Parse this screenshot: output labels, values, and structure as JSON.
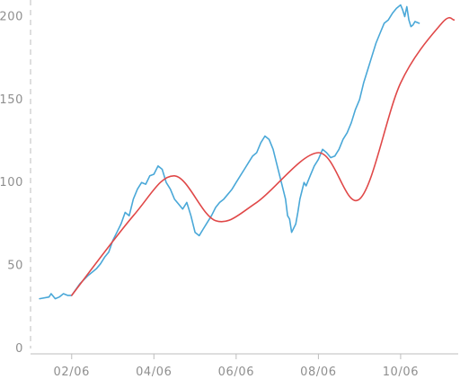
{
  "chart_data": {
    "type": "line",
    "title": "",
    "xlabel": "",
    "ylabel": "",
    "grid": false,
    "legend": "none",
    "xlim": [
      0.0,
      10.4
    ],
    "ylim": [
      0,
      210
    ],
    "x_ticks": [
      {
        "value": 1,
        "label": "02/06"
      },
      {
        "value": 3,
        "label": "04/06"
      },
      {
        "value": 5,
        "label": "06/06"
      },
      {
        "value": 7,
        "label": "08/06"
      },
      {
        "value": 9,
        "label": "10/06"
      }
    ],
    "y_ticks": [
      {
        "value": 0,
        "label": "0"
      },
      {
        "value": 50,
        "label": "50"
      },
      {
        "value": 100,
        "label": "100"
      },
      {
        "value": 150,
        "label": "150"
      },
      {
        "value": 200,
        "label": "200"
      }
    ],
    "series": [
      {
        "color": "#4aa8d8",
        "x": [
          0.22,
          0.45,
          0.5,
          0.6,
          0.7,
          0.8,
          0.9,
          1.0,
          1.2,
          1.4,
          1.5,
          1.6,
          1.7,
          1.8,
          1.9,
          2.0,
          2.1,
          2.2,
          2.3,
          2.4,
          2.5,
          2.6,
          2.7,
          2.8,
          2.9,
          3.0,
          3.1,
          3.2,
          3.3,
          3.4,
          3.5,
          3.6,
          3.7,
          3.8,
          3.9,
          4.0,
          4.1,
          4.2,
          4.3,
          4.4,
          4.5,
          4.6,
          4.7,
          4.8,
          4.9,
          5.0,
          5.1,
          5.2,
          5.3,
          5.4,
          5.5,
          5.6,
          5.7,
          5.8,
          5.9,
          6.0,
          6.1,
          6.2,
          6.25,
          6.3,
          6.35,
          6.45,
          6.5,
          6.55,
          6.6,
          6.65,
          6.7,
          6.8,
          6.9,
          7.0,
          7.1,
          7.2,
          7.3,
          7.4,
          7.5,
          7.6,
          7.7,
          7.8,
          7.9,
          8.0,
          8.1,
          8.2,
          8.3,
          8.4,
          8.5,
          8.6,
          8.7,
          8.8,
          8.9,
          9.0,
          9.05,
          9.1,
          9.15,
          9.2,
          9.25,
          9.3,
          9.35,
          9.45
        ],
        "values": [
          30,
          31,
          33,
          30,
          31,
          33,
          32,
          32,
          39,
          44,
          46,
          48,
          51,
          55,
          58,
          65,
          70,
          75,
          82,
          80,
          90,
          96,
          100,
          99,
          104,
          105,
          110,
          108,
          100,
          96,
          90,
          87,
          84,
          88,
          80,
          70,
          68,
          72,
          76,
          80,
          85,
          88,
          90,
          93,
          96,
          100,
          104,
          108,
          112,
          116,
          118,
          124,
          128,
          126,
          120,
          110,
          100,
          90,
          80,
          78,
          70,
          75,
          82,
          90,
          95,
          100,
          98,
          104,
          110,
          114,
          120,
          118,
          115,
          116,
          120,
          126,
          130,
          136,
          144,
          150,
          160,
          168,
          176,
          184,
          190,
          196,
          198,
          202,
          205,
          207,
          204,
          200,
          206,
          198,
          194,
          195,
          197,
          196
        ]
      },
      {
        "color": "#e04848",
        "x": [
          1.0,
          2.5,
          3.5,
          4.5,
          5.5,
          7.0,
          8.0,
          9.0,
          10.0,
          10.3
        ],
        "values": [
          32,
          80,
          104,
          77,
          88,
          118,
          90,
          160,
          196,
          198
        ]
      }
    ]
  }
}
